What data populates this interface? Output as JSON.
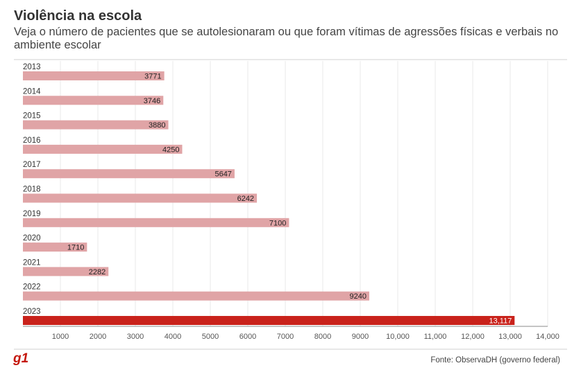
{
  "brand": {
    "logo_text": "g1",
    "accent_color": "#c4170c"
  },
  "chart_data": {
    "type": "bar",
    "orientation": "horizontal",
    "title": "Violência na escola",
    "subtitle": "Veja o número de pacientes que se autolesionaram ou que foram vítimas de agressões físicas e verbais no ambiente escolar",
    "categories": [
      "2013",
      "2014",
      "2015",
      "2016",
      "2017",
      "2018",
      "2019",
      "2020",
      "2021",
      "2022",
      "2023"
    ],
    "values": [
      3771,
      3746,
      3880,
      4250,
      5647,
      6242,
      7100,
      1710,
      2282,
      9240,
      13117
    ],
    "value_labels": [
      "3771",
      "3746",
      "3880",
      "4250",
      "5647",
      "6242",
      "7100",
      "1710",
      "2282",
      "9240",
      "13,117"
    ],
    "x_ticks": [
      1000,
      2000,
      3000,
      4000,
      5000,
      6000,
      7000,
      8000,
      9000,
      10000,
      11000,
      12000,
      13000,
      14000
    ],
    "x_tick_labels": [
      "1000",
      "2000",
      "3000",
      "4000",
      "5000",
      "6000",
      "7000",
      "8000",
      "9000",
      "10,000",
      "11,000",
      "12,000",
      "13,000",
      "14,000"
    ],
    "xlim": [
      0,
      14000
    ],
    "xlabel": "",
    "ylabel": "",
    "grid": true,
    "bar_color": "#e0a4a6",
    "highlight_color": "#c9221b",
    "highlight_category": "2023"
  },
  "source": "Fonte: ObservaDH (governo federal)"
}
